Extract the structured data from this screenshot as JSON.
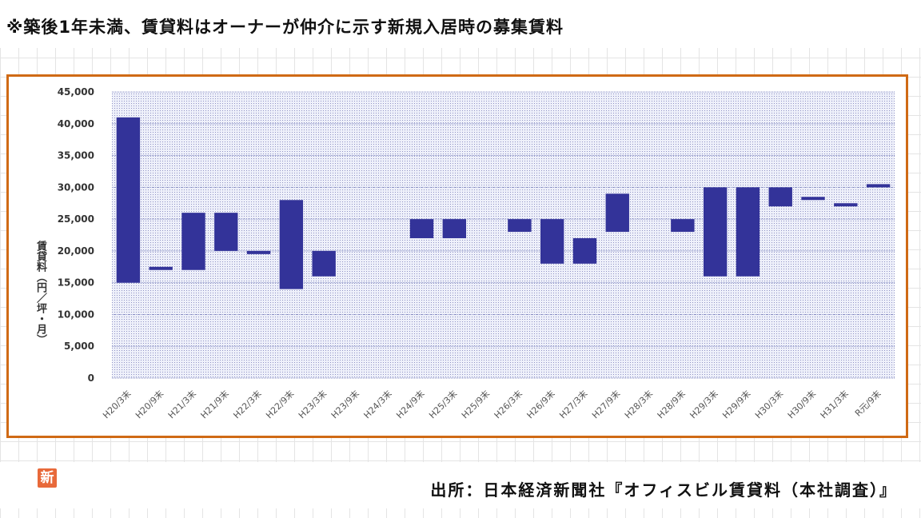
{
  "note": "※築後1年未満、賃貸料はオーナーが仲介に示す新規入居時の募集賃料",
  "source": "出所：日本経済新聞社『オフィスビル賃貸料（本社調査）』",
  "badge": "新",
  "colors": {
    "bar": "#333399",
    "frame": "#d06a15",
    "plot_dots": "#8f92c4"
  },
  "chart_data": {
    "type": "bar",
    "subtype": "floating-range",
    "ylabel": "賃貸料（円／坪・月）",
    "ylim": [
      0,
      45000
    ],
    "yticks": [
      "0",
      "5,000",
      "10,000",
      "15,000",
      "20,000",
      "25,000",
      "30,000",
      "35,000",
      "40,000",
      "45,000"
    ],
    "grid": true,
    "categories": [
      "H20/3末",
      "H20/9末",
      "H21/3末",
      "H21/9末",
      "H22/3末",
      "H22/9末",
      "H23/3末",
      "H23/9末",
      "H24/3末",
      "H24/9末",
      "H25/3末",
      "H25/9末",
      "H26/3末",
      "H26/9末",
      "H27/3末",
      "H27/9末",
      "H28/3末",
      "H28/9末",
      "H29/3末",
      "H29/9末",
      "H30/3末",
      "H30/9末",
      "H31/3末",
      "R元/9末"
    ],
    "low": [
      15000,
      17000,
      17000,
      20000,
      19500,
      14000,
      16000,
      null,
      null,
      22000,
      22000,
      null,
      23000,
      18000,
      18000,
      23000,
      null,
      23000,
      16000,
      16000,
      27000,
      28000,
      27000,
      30000
    ],
    "high": [
      41000,
      17500,
      26000,
      26000,
      20000,
      28000,
      20000,
      null,
      null,
      25000,
      25000,
      null,
      25000,
      25000,
      22000,
      29000,
      null,
      25000,
      30000,
      30000,
      30000,
      28500,
      27500,
      30500
    ]
  }
}
